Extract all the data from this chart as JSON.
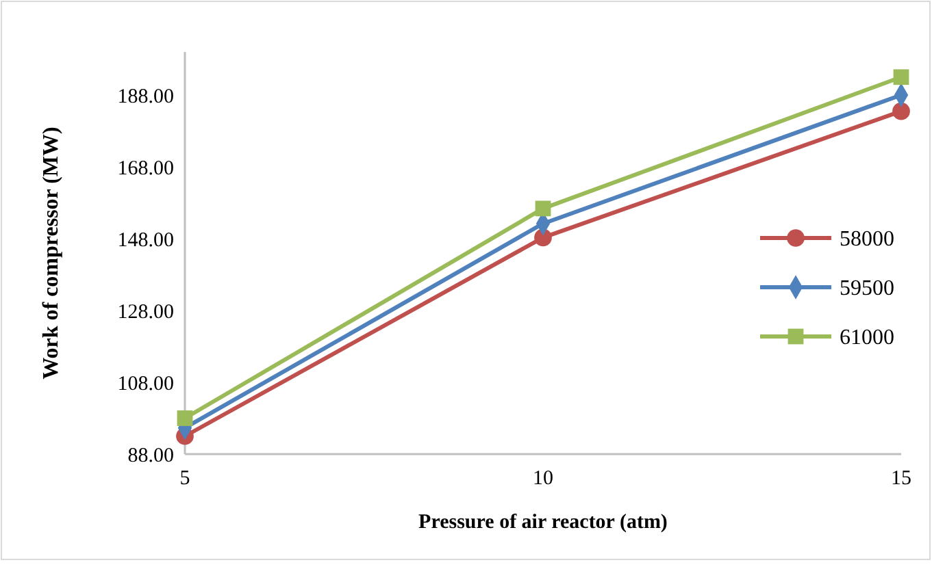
{
  "chart_data": {
    "type": "line",
    "xlabel": "Pressure of air reactor (atm)",
    "ylabel": "Work of compressor (MW)",
    "x": [
      5,
      10,
      15
    ],
    "xlim": [
      5,
      15
    ],
    "xticks": [
      5,
      10,
      15
    ],
    "ylim": [
      88,
      200
    ],
    "yticks": [
      {
        "value": 88,
        "label": "88.00"
      },
      {
        "value": 108,
        "label": "108.00"
      },
      {
        "value": 128,
        "label": "128.00"
      },
      {
        "value": 148,
        "label": "148.00"
      },
      {
        "value": 168,
        "label": "168.00"
      },
      {
        "value": 188,
        "label": "188.00"
      }
    ],
    "series": [
      {
        "name": "58000",
        "color": "#c0504d",
        "marker": "circle",
        "values": [
          93,
          148.3,
          183.5
        ]
      },
      {
        "name": "59500",
        "color": "#4f81bd",
        "marker": "diamond",
        "values": [
          95.3,
          152.2,
          188
        ]
      },
      {
        "name": "61000",
        "color": "#9bbb59",
        "marker": "square",
        "values": [
          98,
          156.4,
          193
        ]
      }
    ],
    "grid": false,
    "legend": "right"
  }
}
